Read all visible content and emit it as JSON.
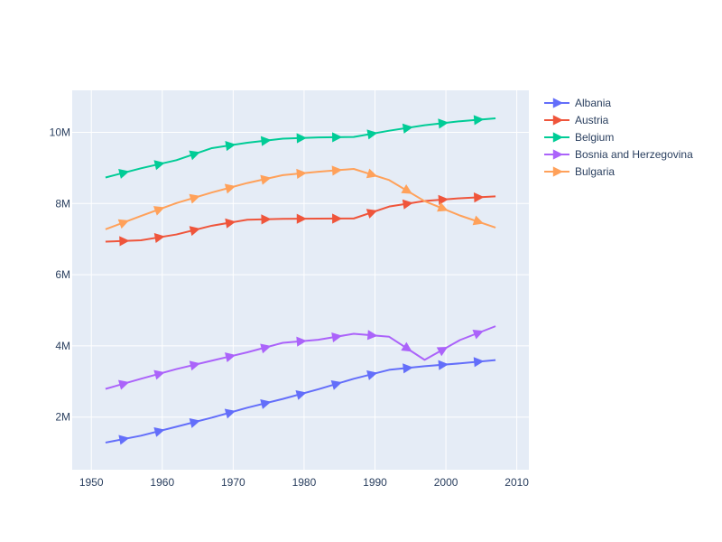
{
  "chart_data": {
    "type": "line",
    "title": "",
    "xlabel": "",
    "ylabel": "",
    "x": [
      1952,
      1957,
      1962,
      1967,
      1972,
      1977,
      1982,
      1987,
      1992,
      1997,
      2002,
      2007
    ],
    "xlim": [
      1947.3,
      2011.7
    ],
    "ylim": [
      520000,
      11180000
    ],
    "x_ticks": [
      1950,
      1960,
      1970,
      1980,
      1990,
      2000,
      2010
    ],
    "x_tick_labels": [
      "1950",
      "1960",
      "1970",
      "1980",
      "1990",
      "2000",
      "2010"
    ],
    "y_ticks": [
      2000000,
      4000000,
      6000000,
      8000000,
      10000000
    ],
    "y_tick_labels": [
      "2M",
      "4M",
      "6M",
      "8M",
      "10M"
    ],
    "grid": true,
    "legend_position": "top-right",
    "marker": "triangle-right",
    "plot_background": "#e5ecf6",
    "series": [
      {
        "name": "Albania",
        "color": "#636efa",
        "values": [
          1282697,
          1476505,
          1728137,
          1984060,
          2263554,
          2509048,
          2780097,
          3075321,
          3326498,
          3428038,
          3508512,
          3600523
        ]
      },
      {
        "name": "Austria",
        "color": "#ef553b",
        "values": [
          6927772,
          6965860,
          7129864,
          7376998,
          7544201,
          7568430,
          7574613,
          7578903,
          7914969,
          8069876,
          8148312,
          8199783
        ]
      },
      {
        "name": "Belgium",
        "color": "#00cc96",
        "values": [
          8730405,
          8989111,
          9218400,
          9556500,
          9709100,
          9821800,
          9856303,
          9870200,
          10045622,
          10199787,
          10311970,
          10392226
        ]
      },
      {
        "name": "Bosnia and Herzegovina",
        "color": "#ab63fa",
        "values": [
          2791000,
          3076000,
          3349000,
          3585000,
          3819000,
          4086000,
          4172693,
          4338977,
          4256013,
          3607000,
          4165416,
          4552198
        ]
      },
      {
        "name": "Bulgaria",
        "color": "#ffa15a",
        "values": [
          7274900,
          7651254,
          8012946,
          8310226,
          8576200,
          8797022,
          8892098,
          8971958,
          8658506,
          8066057,
          7661799,
          7322858
        ]
      }
    ]
  }
}
